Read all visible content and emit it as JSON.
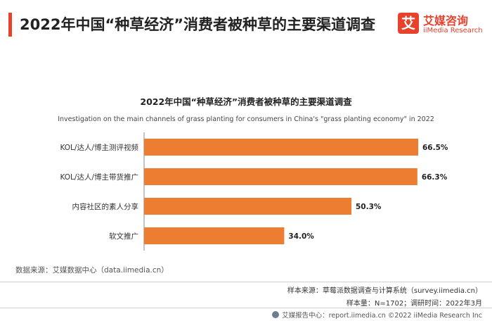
{
  "header": {
    "title": "2022年中国“种草经济”消费者被种草的主要渠道调查",
    "logo_mark": "艾",
    "logo_name": "艾媒咨询",
    "logo_sub": "iiMedia Research"
  },
  "chart_data": {
    "type": "bar",
    "orientation": "horizontal",
    "title": "2022年中国“种草经济”消费者被种草的主要渠道调查",
    "subtitle": "Investigation on the main channels of grass planting for consumers in China's \"grass planting economy\" in 2022",
    "categories": [
      "KOL/达人/博主测评视频",
      "KOL/达人/博主带货推广",
      "内容社区的素人分享",
      "软文推广"
    ],
    "values": [
      66.5,
      66.3,
      50.3,
      34.0
    ],
    "value_labels": [
      "66.5%",
      "66.3%",
      "50.3%",
      "34.0%"
    ],
    "xlim": [
      0,
      70
    ],
    "grid": false,
    "legend": "none",
    "bar_color": "#ed7d31"
  },
  "footer": {
    "data_source": "数据来源：艾媒数据中心（data.iimedia.cn）",
    "sample_source": "样本来源：草莓派数据调查与计算系统（survey.iimedia.cn）",
    "sample_info": "样本量：N=1702；调研时间：2022年3月",
    "copyright": "艾媒报告中心：report.iimedia.cn  ©2022  iiMedia Research  Inc"
  }
}
